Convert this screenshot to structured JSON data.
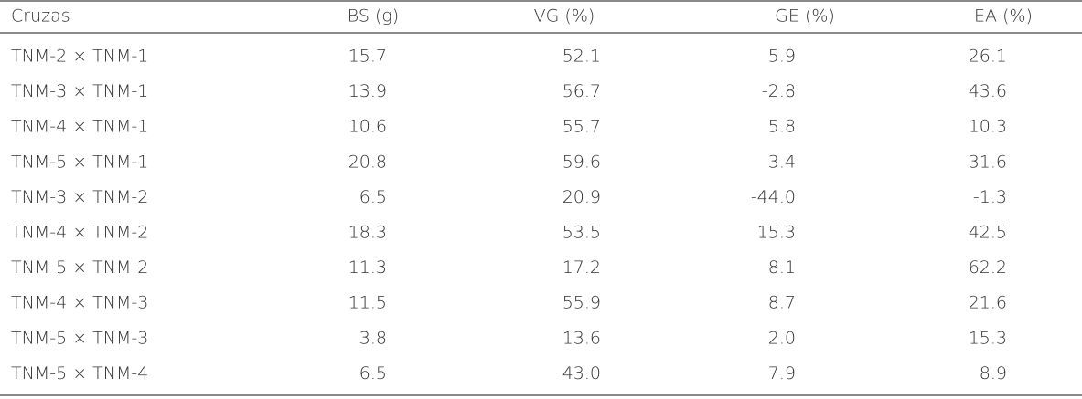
{
  "table": {
    "header": [
      "Cruzas",
      "BS (g)",
      "VG (%)",
      "GE (%)",
      "EA (%)"
    ],
    "rows": [
      [
        "TNM-2 × TNM-1",
        "15.7",
        "52.1",
        "5.9",
        "26.1"
      ],
      [
        "TNM-3 × TNM-1",
        "13.9",
        "56.7",
        "-2.8",
        "43.6"
      ],
      [
        "TNM-4 × TNM-1",
        "10.6",
        "55.7",
        "5.8",
        "10.3"
      ],
      [
        "TNM-5 × TNM-1",
        "20.8",
        "59.6",
        "3.4",
        "31.6"
      ],
      [
        "TNM-3 × TNM-2",
        "6.5",
        "20.9",
        "-44.0",
        "-1.3"
      ],
      [
        "TNM-4 × TNM-2",
        "18.3",
        "53.5",
        "15.3",
        "42.5"
      ],
      [
        "TNM-5 × TNM-2",
        "11.3",
        "17.2",
        "8.1",
        "62.2"
      ],
      [
        "TNM-4 × TNM-3",
        "11.5",
        "55.9",
        "8.7",
        "21.6"
      ],
      [
        "TNM-5 × TNM-3",
        "3.8",
        "13.6",
        "2.0",
        "15.3"
      ],
      [
        "TNM-5 × TNM-4",
        "6.5",
        "43.0",
        "7.9",
        "8.9"
      ]
    ]
  }
}
